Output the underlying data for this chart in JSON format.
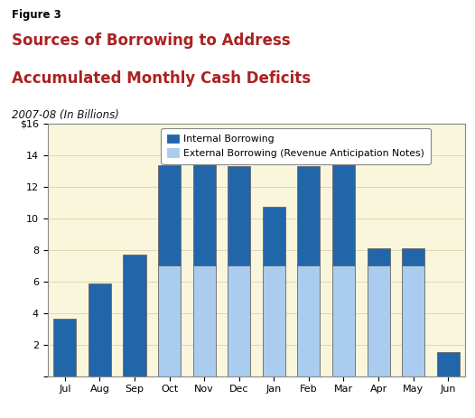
{
  "months": [
    "Jul",
    "Aug",
    "Sep",
    "Oct",
    "Nov",
    "Dec",
    "Jan",
    "Feb",
    "Mar",
    "Apr",
    "May",
    "Jun"
  ],
  "internal_borrowing": [
    3.65,
    5.85,
    7.7,
    6.35,
    7.3,
    6.3,
    3.7,
    6.3,
    8.1,
    1.1,
    1.1,
    1.5
  ],
  "external_borrowing": [
    0.0,
    0.0,
    0.0,
    7.0,
    7.0,
    7.0,
    7.0,
    7.0,
    7.0,
    7.0,
    7.0,
    0.0
  ],
  "internal_color": "#2266aa",
  "external_color": "#aaccee",
  "background_color": "#faf6dc",
  "chart_border_color": "#888888",
  "figure_label": "Figure 3",
  "title_line1": "Sources of Borrowing to Address",
  "title_line2": "Accumulated Monthly Cash Deficits",
  "subtitle": "2007-08 (In Billions)",
  "legend_internal": "Internal Borrowing",
  "legend_external": "External Borrowing (Revenue Anticipation Notes)",
  "ylim": [
    0,
    16
  ],
  "yticks": [
    0,
    2,
    4,
    6,
    8,
    10,
    12,
    14,
    16
  ],
  "title_color": "#aa2222",
  "figure_label_color": "#000000",
  "header_bg": "#faf0e0",
  "dark_line_color": "#333333"
}
